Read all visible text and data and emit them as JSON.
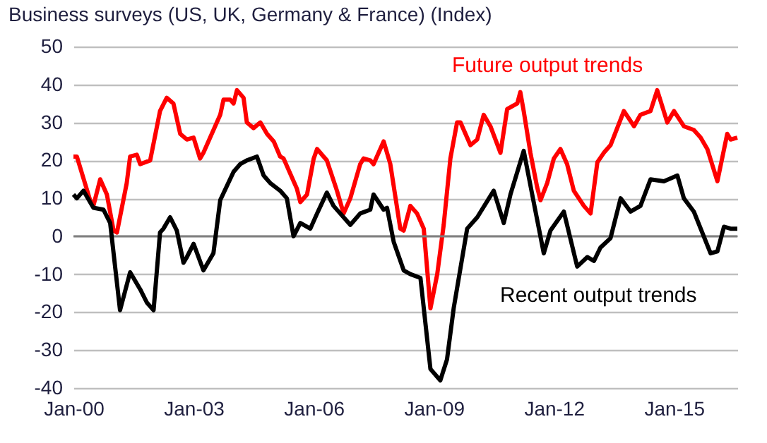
{
  "chart_data": {
    "type": "line",
    "title": "Business surveys (US, UK, Germany & France) (Index)",
    "xlim": [
      "2000-01",
      "2016-08"
    ],
    "xticks": [
      {
        "value": "2000-01",
        "label": "Jan-00"
      },
      {
        "value": "2003-01",
        "label": "Jan-03"
      },
      {
        "value": "2006-01",
        "label": "Jan-06"
      },
      {
        "value": "2009-01",
        "label": "Jan-09"
      },
      {
        "value": "2012-01",
        "label": "Jan-12"
      },
      {
        "value": "2015-01",
        "label": "Jan-15"
      }
    ],
    "ylim": [
      -40,
      50
    ],
    "yticks": [
      -40,
      -30,
      -20,
      -10,
      0,
      10,
      20,
      30,
      40,
      50
    ],
    "grid": "y",
    "marker": "none",
    "line_style": "solid",
    "ref_lines": [
      {
        "axis": "y",
        "value": 0,
        "color": "#7f7f7f"
      }
    ],
    "series": [
      {
        "name": "Future output trends",
        "color": "#ff0000",
        "x": [
          "2000-01",
          "2000-02",
          "2000-06",
          "2000-07",
          "2000-09",
          "2000-11",
          "2001-01",
          "2001-02",
          "2001-05",
          "2001-06",
          "2001-08",
          "2001-09",
          "2001-12",
          "2002-03",
          "2002-05",
          "2002-07",
          "2002-09",
          "2002-11",
          "2003-01",
          "2003-03",
          "2003-04",
          "2003-06",
          "2003-09",
          "2003-10",
          "2003-12",
          "2004-01",
          "2004-02",
          "2004-04",
          "2004-05",
          "2004-07",
          "2004-09",
          "2004-11",
          "2005-01",
          "2005-03",
          "2005-04",
          "2005-08",
          "2005-09",
          "2005-11",
          "2006-01",
          "2006-02",
          "2006-04",
          "2006-05",
          "2006-08",
          "2006-10",
          "2006-12",
          "2007-03",
          "2007-04",
          "2007-06",
          "2007-07",
          "2007-10",
          "2007-12",
          "2008-03",
          "2008-04",
          "2008-06",
          "2008-08",
          "2008-10",
          "2008-12",
          "2009-02",
          "2009-04",
          "2009-06",
          "2009-08",
          "2009-09",
          "2009-12",
          "2010-02",
          "2010-04",
          "2010-06",
          "2010-09",
          "2010-11",
          "2011-02",
          "2011-03",
          "2011-04",
          "2011-06",
          "2011-08",
          "2011-09",
          "2011-11",
          "2012-01",
          "2012-03",
          "2012-05",
          "2012-07",
          "2012-10",
          "2012-12",
          "2013-02",
          "2013-04",
          "2013-06",
          "2013-10",
          "2014-01",
          "2014-03",
          "2014-06",
          "2014-08",
          "2014-11",
          "2015-01",
          "2015-04",
          "2015-07",
          "2015-09",
          "2015-11",
          "2016-02",
          "2016-05",
          "2016-06",
          "2016-08"
        ],
        "values": [
          21,
          21,
          9.5,
          8,
          15,
          11,
          1.5,
          1,
          14,
          21,
          21.5,
          19,
          20,
          33,
          36.5,
          35,
          27,
          25.5,
          26,
          20.5,
          22,
          26,
          32,
          36,
          36,
          35,
          38.5,
          36.5,
          30,
          28.5,
          30,
          27,
          25,
          21,
          20.5,
          12.5,
          9,
          11,
          20.5,
          23,
          21,
          20,
          12,
          6,
          10,
          19,
          20.5,
          20,
          19,
          25,
          19,
          2,
          1.5,
          8,
          6,
          2,
          -19,
          -10,
          3,
          20.5,
          30,
          30,
          24,
          25.5,
          32,
          29,
          22,
          33.5,
          35,
          38,
          33,
          22,
          13,
          9.5,
          14,
          20.5,
          23,
          19,
          12,
          8,
          6,
          19.5,
          22,
          24,
          33,
          29,
          32,
          33,
          38.5,
          30,
          33,
          29,
          28,
          26,
          23,
          14.5,
          27,
          25.5,
          26
        ]
      },
      {
        "name": "Recent output trends",
        "color": "#000000",
        "x": [
          "2000-01",
          "2000-02",
          "2000-04",
          "2000-07",
          "2000-10",
          "2000-12",
          "2001-03",
          "2001-06",
          "2001-09",
          "2001-11",
          "2002-01",
          "2002-03",
          "2002-04",
          "2002-06",
          "2002-08",
          "2002-10",
          "2002-11",
          "2003-01",
          "2003-04",
          "2003-07",
          "2003-09",
          "2004-01",
          "2004-03",
          "2004-05",
          "2004-08",
          "2004-10",
          "2004-12",
          "2005-03",
          "2005-05",
          "2005-07",
          "2005-09",
          "2005-12",
          "2006-02",
          "2006-05",
          "2006-07",
          "2006-12",
          "2007-03",
          "2007-06",
          "2007-07",
          "2007-10",
          "2007-11",
          "2008-01",
          "2008-04",
          "2008-06",
          "2008-09",
          "2008-12",
          "2009-03",
          "2009-05",
          "2009-07",
          "2009-11",
          "2010-02",
          "2010-07",
          "2010-10",
          "2010-12",
          "2011-04",
          "2011-07",
          "2011-10",
          "2011-12",
          "2012-04",
          "2012-08",
          "2012-11",
          "2013-01",
          "2013-03",
          "2013-06",
          "2013-09",
          "2013-12",
          "2014-03",
          "2014-06",
          "2014-10",
          "2015-02",
          "2015-04",
          "2015-07",
          "2015-12",
          "2016-02",
          "2016-04",
          "2016-06",
          "2016-08"
        ],
        "values": [
          11,
          10,
          12,
          7.5,
          7,
          3.5,
          -19.5,
          -9.5,
          -14,
          -17.5,
          -19.5,
          1,
          2,
          5,
          1.5,
          -7,
          -5.5,
          -2,
          -9,
          -4.5,
          9.5,
          17,
          19,
          20,
          21,
          16,
          14,
          12,
          10,
          0,
          3.5,
          2,
          6,
          11.5,
          8,
          3,
          6,
          7,
          11,
          7,
          7.5,
          -1.5,
          -9,
          -10,
          -11,
          -35,
          -38,
          -32.5,
          -19,
          2,
          5,
          12,
          3.5,
          11,
          22.5,
          9,
          -4.5,
          1.5,
          6.5,
          -8,
          -5.5,
          -6.5,
          -3,
          -0.5,
          10,
          6.5,
          8,
          15,
          14.5,
          16,
          10,
          6.5,
          -4.5,
          -4,
          2.5,
          2,
          2
        ]
      }
    ]
  }
}
